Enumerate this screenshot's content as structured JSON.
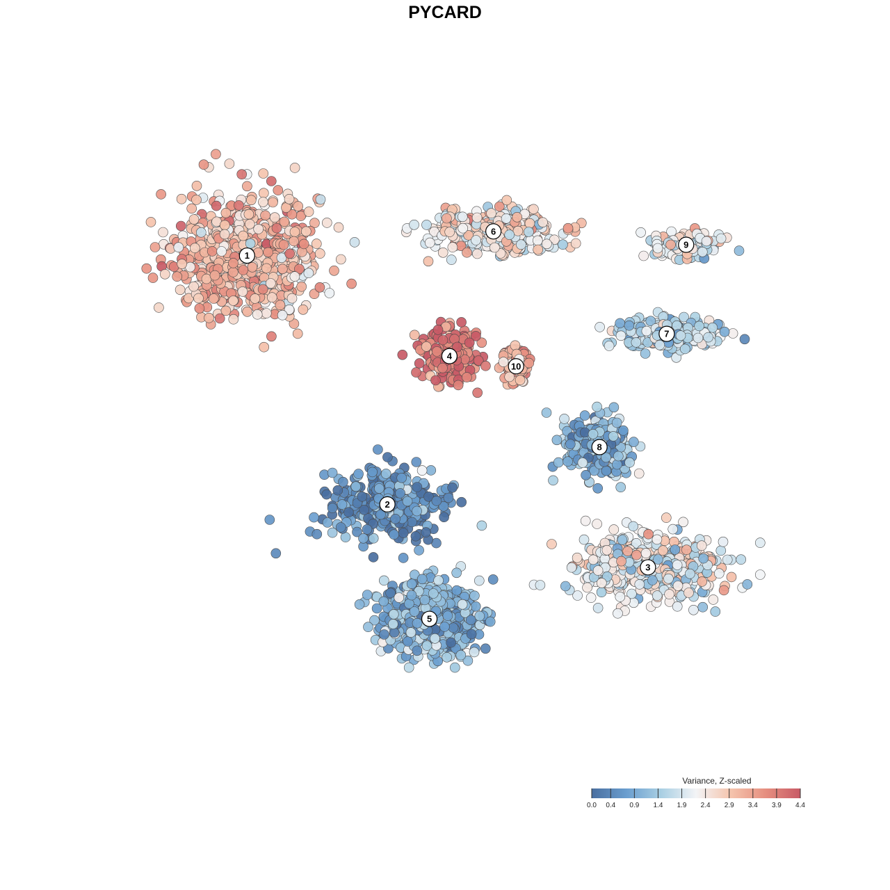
{
  "chart_data": {
    "type": "scatter",
    "title": "PYCARD",
    "legend": {
      "title": "Variance, Z-scaled",
      "position": "bottom-right",
      "range": [
        0.0,
        4.4
      ],
      "ticks": [
        "0.0",
        "0.4",
        "0.9",
        "1.4",
        "1.9",
        "2.4",
        "2.9",
        "3.4",
        "3.9",
        "4.4"
      ],
      "colors": [
        "#4a6fa0",
        "#6a9ecf",
        "#a9cfe3",
        "#f3f4f6",
        "#f5c4ad",
        "#e68f80",
        "#c85a66"
      ]
    },
    "grid": false,
    "axes_visible": false,
    "xlim": [
      -50,
      50
    ],
    "ylim": [
      -50,
      50
    ],
    "clusters": [
      {
        "label": "1",
        "x": -33.3,
        "y": 29.5,
        "mean_value": 3.0,
        "spread": [
          10,
          9
        ],
        "n": 700
      },
      {
        "label": "2",
        "x": -11.6,
        "y": -9.6,
        "mean_value": 0.5,
        "spread": [
          8,
          5
        ],
        "n": 350
      },
      {
        "label": "3",
        "x": 28.7,
        "y": -19.5,
        "mean_value": 2.1,
        "spread": [
          10,
          5
        ],
        "n": 550
      },
      {
        "label": "4",
        "x": -2.0,
        "y": 13.7,
        "mean_value": 4.0,
        "spread": [
          4,
          4
        ],
        "n": 200
      },
      {
        "label": "5",
        "x": -5.1,
        "y": -27.6,
        "mean_value": 1.1,
        "spread": [
          7,
          5
        ],
        "n": 600
      },
      {
        "label": "6",
        "x": 4.8,
        "y": 33.3,
        "mean_value": 2.5,
        "spread": [
          9,
          3
        ],
        "n": 350
      },
      {
        "label": "7",
        "x": 31.6,
        "y": 17.2,
        "mean_value": 1.7,
        "spread": [
          7,
          2
        ],
        "n": 250
      },
      {
        "label": "8",
        "x": 21.2,
        "y": -0.6,
        "mean_value": 1.0,
        "spread": [
          5,
          4
        ],
        "n": 250
      },
      {
        "label": "9",
        "x": 34.6,
        "y": 31.2,
        "mean_value": 2.1,
        "spread": [
          5,
          2
        ],
        "n": 120
      },
      {
        "label": "10",
        "x": 8.3,
        "y": 12.1,
        "mean_value": 3.1,
        "spread": [
          2,
          3
        ],
        "n": 90
      }
    ]
  }
}
